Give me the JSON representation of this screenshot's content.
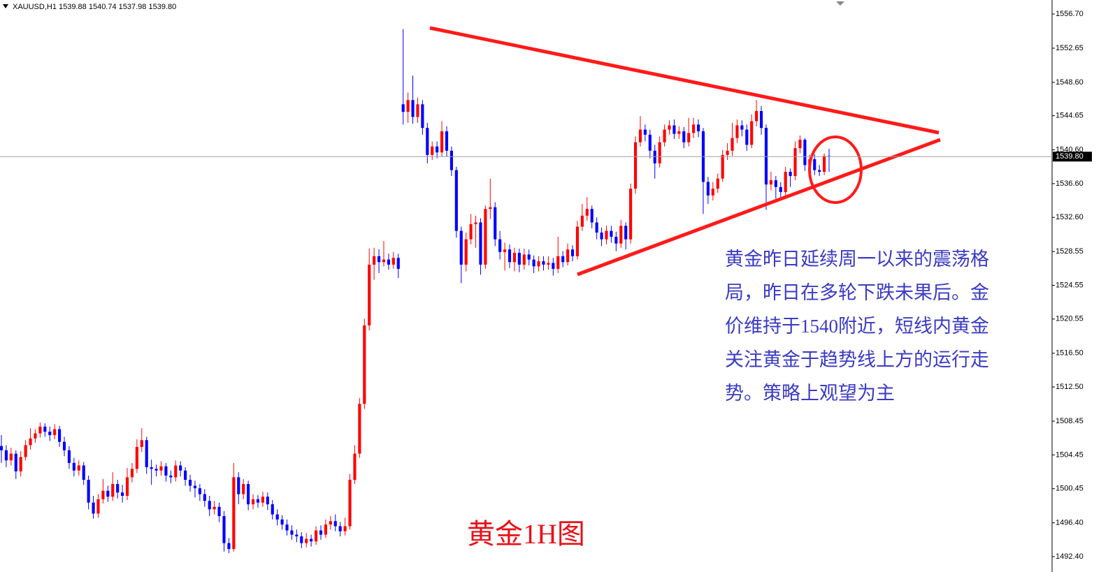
{
  "chart_data": {
    "type": "candlestick",
    "header": "XAUUSD,H1  1539.88 1540.74 1537.98 1539.80",
    "annotation_lines": [
      "黄金昨日延续周一以来的震荡格",
      "局，昨日在多轮下跌未果后。金",
      "价维持于1540附近，短线内黄金",
      "关注黄金于趋势线上方的运行走",
      "势。策略上观望为主"
    ],
    "chart_label": "黄金1H图",
    "up_color": "#ff0000",
    "down_color": "#0000ff",
    "ylim": [
      1491.32,
      1558.36
    ],
    "yticks": [
      {
        "value": 1556.7,
        "label": "1556.70"
      },
      {
        "value": 1552.65,
        "label": "1552.65"
      },
      {
        "value": 1548.6,
        "label": "1548.60"
      },
      {
        "value": 1544.65,
        "label": "1544.65"
      },
      {
        "value": 1540.6,
        "label": "1540.60"
      },
      {
        "value": 1536.6,
        "label": "1536.60"
      },
      {
        "value": 1532.6,
        "label": "1532.60"
      },
      {
        "value": 1528.55,
        "label": "1528.55"
      },
      {
        "value": 1524.55,
        "label": "1524.55"
      },
      {
        "value": 1520.55,
        "label": "1520.55"
      },
      {
        "value": 1516.5,
        "label": "1516.50"
      },
      {
        "value": 1512.5,
        "label": "1512.50"
      },
      {
        "value": 1508.45,
        "label": "1508.45"
      },
      {
        "value": 1504.45,
        "label": "1504.45"
      },
      {
        "value": 1500.45,
        "label": "1500.45"
      },
      {
        "value": 1496.4,
        "label": "1496.40"
      },
      {
        "value": 1492.4,
        "label": "1492.40"
      }
    ],
    "current_price": {
      "value": 1539.8,
      "label": "1539.80"
    },
    "open": [
      1505.5,
      1505.0,
      1503.8,
      1504.6,
      1502.5,
      1504.2,
      1505.6,
      1506.4,
      1507.0,
      1507.8,
      1507.2,
      1506.8,
      1507.5,
      1506.0,
      1505.0,
      1503.5,
      1502.6,
      1503.2,
      1501.5,
      1498.8,
      1497.5,
      1499.2,
      1500.2,
      1499.5,
      1501.0,
      1500.0,
      1499.6,
      1501.8,
      1502.8,
      1505.4,
      1506.2,
      1503.0,
      1502.8,
      1502.6,
      1503.1,
      1502.0,
      1501.8,
      1503.2,
      1502.6,
      1501.5,
      1500.8,
      1500.5,
      1499.8,
      1499.0,
      1498.0,
      1498.3,
      1497.2,
      1494.0,
      1493.3,
      1501.8,
      1499.8,
      1501.0,
      1498.6,
      1499.2,
      1498.8,
      1499.5,
      1498.6,
      1497.4,
      1496.8,
      1496.2,
      1495.5,
      1495.0,
      1494.8,
      1494.0,
      1494.5,
      1494.2,
      1495.5,
      1495.0,
      1496.2,
      1496.6,
      1496.0,
      1495.4,
      1496.0,
      1501.5,
      1504.6,
      1510.5,
      1519.8,
      1527.0,
      1528.0,
      1527.3,
      1527.6,
      1527.0,
      1527.8,
      1546.0,
      1545.1,
      1546.5,
      1544.5,
      1546.0,
      1543.2,
      1540.0,
      1541.0,
      1540.3,
      1542.8,
      1540.5,
      1538.2,
      1531.0,
      1527.0,
      1530.0,
      1531.8,
      1532.0,
      1527.0,
      1533.6,
      1533.8,
      1530.0,
      1528.5,
      1528.8,
      1527.3,
      1528.4,
      1527.0,
      1528.2,
      1527.6,
      1526.8,
      1527.4,
      1527.0,
      1527.2,
      1526.5,
      1528.0,
      1527.3,
      1528.8,
      1528.0,
      1531.5,
      1532.8,
      1533.6,
      1532.0,
      1530.8,
      1530.0,
      1531.0,
      1530.3,
      1529.5,
      1531.6,
      1530.0,
      1536.0,
      1541.5,
      1543.0,
      1542.4,
      1540.5,
      1539.0,
      1541.5,
      1543.0,
      1543.5,
      1542.5,
      1542.8,
      1541.5,
      1542.6,
      1543.6,
      1542.8,
      1536.8,
      1535.2,
      1536.0,
      1537.2,
      1540.0,
      1540.5,
      1542.0,
      1543.5,
      1543.0,
      1541.2,
      1544.0,
      1545.2,
      1543.2,
      1536.5,
      1537.0,
      1536.2,
      1535.6,
      1538.0,
      1537.5,
      1540.8,
      1541.8,
      1538.8,
      1539.5,
      1538.2,
      1538.0,
      1539.88
    ],
    "high": [
      1506.8,
      1505.6,
      1505.3,
      1505.0,
      1504.9,
      1506.2,
      1507.6,
      1507.5,
      1508.3,
      1508.2,
      1507.8,
      1508.1,
      1507.9,
      1506.6,
      1505.5,
      1504.1,
      1503.8,
      1503.6,
      1502.0,
      1499.6,
      1499.8,
      1501.6,
      1500.8,
      1502.4,
      1501.5,
      1500.9,
      1502.9,
      1503.5,
      1506.3,
      1507.6,
      1506.6,
      1503.9,
      1503.3,
      1503.7,
      1503.5,
      1502.6,
      1503.8,
      1503.7,
      1503.0,
      1502.1,
      1501.4,
      1501.0,
      1500.4,
      1499.6,
      1499.0,
      1498.8,
      1497.8,
      1494.6,
      1503.5,
      1502.4,
      1501.6,
      1501.4,
      1499.8,
      1499.7,
      1500.1,
      1500.0,
      1499.1,
      1498.0,
      1497.3,
      1496.8,
      1496.1,
      1495.6,
      1495.3,
      1495.2,
      1495.0,
      1496.0,
      1496.1,
      1496.8,
      1497.2,
      1497.4,
      1496.5,
      1497.0,
      1502.2,
      1505.6,
      1511.2,
      1520.6,
      1528.9,
      1529.0,
      1528.8,
      1529.8,
      1528.3,
      1528.5,
      1528.3,
      1554.9,
      1547.4,
      1549.4,
      1546.8,
      1546.5,
      1543.8,
      1541.6,
      1541.6,
      1544.0,
      1543.4,
      1541.0,
      1538.6,
      1531.5,
      1530.8,
      1533.0,
      1532.8,
      1532.5,
      1534.0,
      1537.2,
      1534.4,
      1531.0,
      1529.6,
      1529.4,
      1529.0,
      1528.9,
      1528.9,
      1528.8,
      1528.1,
      1528.0,
      1528.0,
      1528.0,
      1527.8,
      1530.3,
      1528.6,
      1529.5,
      1529.3,
      1532.2,
      1534.2,
      1535.0,
      1534.0,
      1532.6,
      1531.4,
      1531.6,
      1531.6,
      1530.9,
      1532.3,
      1532.0,
      1536.6,
      1542.2,
      1544.6,
      1543.6,
      1543.0,
      1541.2,
      1542.2,
      1543.6,
      1544.1,
      1544.2,
      1543.4,
      1543.3,
      1544.4,
      1544.4,
      1544.2,
      1543.2,
      1537.4,
      1536.8,
      1537.8,
      1540.6,
      1541.4,
      1543.8,
      1544.2,
      1544.1,
      1543.6,
      1544.8,
      1546.5,
      1545.8,
      1543.6,
      1538.0,
      1537.5,
      1536.8,
      1538.6,
      1538.4,
      1541.6,
      1542.3,
      1542.0,
      1540.0,
      1540.1,
      1538.8,
      1540.2,
      1540.74
    ],
    "low": [
      1503.5,
      1503.0,
      1503.2,
      1501.6,
      1501.9,
      1503.8,
      1505.1,
      1505.9,
      1506.5,
      1506.6,
      1506.1,
      1506.3,
      1505.4,
      1504.3,
      1502.8,
      1501.9,
      1502.0,
      1500.9,
      1498.0,
      1496.9,
      1497.0,
      1498.7,
      1498.9,
      1499.0,
      1499.3,
      1498.8,
      1499.1,
      1501.2,
      1502.3,
      1504.8,
      1502.2,
      1500.9,
      1501.9,
      1502.0,
      1501.3,
      1501.1,
      1501.3,
      1501.9,
      1500.8,
      1500.1,
      1499.4,
      1499.0,
      1498.3,
      1497.2,
      1497.4,
      1496.5,
      1493.0,
      1492.8,
      1493.0,
      1498.6,
      1499.2,
      1497.9,
      1498.0,
      1498.2,
      1498.3,
      1497.9,
      1496.8,
      1496.1,
      1495.6,
      1494.9,
      1494.4,
      1494.1,
      1493.4,
      1493.5,
      1493.6,
      1493.8,
      1494.4,
      1494.6,
      1495.6,
      1495.4,
      1494.8,
      1494.9,
      1495.6,
      1501.0,
      1504.1,
      1509.9,
      1519.2,
      1525.2,
      1526.0,
      1526.8,
      1526.4,
      1526.5,
      1525.4,
      1543.6,
      1543.8,
      1543.7,
      1543.8,
      1542.4,
      1539.0,
      1539.4,
      1539.6,
      1539.8,
      1539.8,
      1537.5,
      1530.2,
      1524.8,
      1526.2,
      1529.4,
      1529.0,
      1525.8,
      1526.5,
      1532.4,
      1529.2,
      1527.6,
      1526.3,
      1526.6,
      1526.2,
      1526.1,
      1526.4,
      1526.9,
      1526.0,
      1526.2,
      1526.3,
      1526.4,
      1525.7,
      1526.0,
      1526.7,
      1526.9,
      1527.4,
      1527.6,
      1531.0,
      1532.2,
      1531.3,
      1530.0,
      1529.2,
      1529.4,
      1529.6,
      1528.6,
      1529.0,
      1528.8,
      1529.5,
      1535.4,
      1541.0,
      1541.6,
      1539.6,
      1537.2,
      1538.5,
      1541.0,
      1542.4,
      1541.9,
      1541.9,
      1540.8,
      1541.0,
      1542.0,
      1542.1,
      1533.0,
      1534.2,
      1534.6,
      1535.5,
      1536.8,
      1539.4,
      1539.9,
      1541.4,
      1542.2,
      1540.5,
      1540.8,
      1543.4,
      1542.4,
      1533.5,
      1535.8,
      1534.8,
      1535.0,
      1535.2,
      1536.2,
      1537.0,
      1540.2,
      1538.1,
      1537.6,
      1537.6,
      1537.5,
      1537.6,
      1537.98
    ],
    "close": [
      1505.0,
      1503.8,
      1504.6,
      1502.5,
      1504.2,
      1505.6,
      1506.4,
      1507.0,
      1507.8,
      1507.2,
      1506.8,
      1507.5,
      1506.0,
      1505.0,
      1503.5,
      1502.6,
      1503.2,
      1501.5,
      1498.8,
      1497.5,
      1499.2,
      1500.2,
      1499.5,
      1501.0,
      1500.0,
      1499.6,
      1501.8,
      1502.8,
      1505.4,
      1506.2,
      1503.0,
      1502.8,
      1502.6,
      1503.1,
      1502.0,
      1501.8,
      1503.2,
      1502.6,
      1501.5,
      1500.8,
      1500.5,
      1499.8,
      1499.0,
      1498.0,
      1498.3,
      1497.2,
      1494.0,
      1493.3,
      1501.8,
      1499.8,
      1501.0,
      1498.6,
      1499.2,
      1498.8,
      1499.5,
      1498.6,
      1497.4,
      1496.8,
      1496.2,
      1495.5,
      1495.0,
      1494.8,
      1494.0,
      1494.5,
      1494.2,
      1495.5,
      1495.0,
      1496.2,
      1496.6,
      1496.0,
      1495.4,
      1496.0,
      1501.5,
      1504.6,
      1510.5,
      1519.8,
      1527.0,
      1528.0,
      1527.3,
      1527.6,
      1527.0,
      1527.8,
      1526.5,
      1545.1,
      1546.5,
      1544.5,
      1546.0,
      1543.2,
      1540.0,
      1541.0,
      1540.3,
      1542.8,
      1540.5,
      1538.2,
      1531.0,
      1527.0,
      1530.0,
      1531.8,
      1532.0,
      1527.0,
      1533.6,
      1533.8,
      1530.0,
      1528.5,
      1528.8,
      1527.3,
      1528.4,
      1527.0,
      1528.2,
      1527.6,
      1526.8,
      1527.4,
      1527.0,
      1527.2,
      1526.5,
      1528.0,
      1527.3,
      1528.8,
      1528.0,
      1531.5,
      1532.8,
      1533.6,
      1532.0,
      1530.8,
      1530.0,
      1531.0,
      1530.3,
      1529.5,
      1531.6,
      1530.0,
      1536.0,
      1541.5,
      1543.0,
      1542.4,
      1540.5,
      1539.0,
      1541.5,
      1543.0,
      1543.5,
      1542.5,
      1542.8,
      1541.5,
      1542.6,
      1543.6,
      1542.8,
      1536.8,
      1535.2,
      1536.0,
      1537.2,
      1540.0,
      1540.5,
      1542.0,
      1543.5,
      1543.0,
      1541.2,
      1544.0,
      1545.2,
      1543.2,
      1536.5,
      1537.0,
      1536.2,
      1535.6,
      1538.0,
      1537.5,
      1540.8,
      1541.8,
      1538.8,
      1539.5,
      1538.2,
      1538.0,
      1539.88,
      1539.8
    ]
  }
}
